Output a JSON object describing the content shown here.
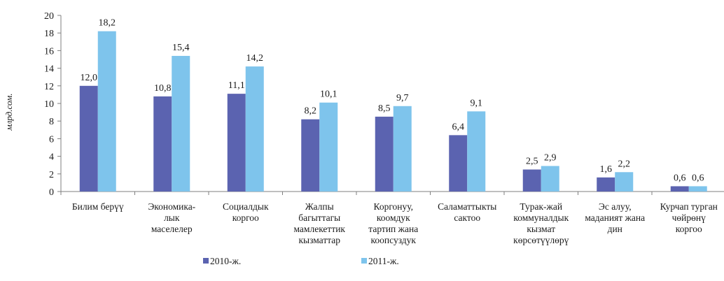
{
  "chart_data": {
    "type": "bar",
    "title_fragment": "",
    "ylabel": "млрд.сом.",
    "ylim": [
      0,
      20
    ],
    "yticks": [
      0,
      2,
      4,
      6,
      8,
      10,
      12,
      14,
      16,
      18,
      20
    ],
    "categories": [
      [
        "Билим берүү"
      ],
      [
        "Экономика-",
        "лык",
        "маселелер"
      ],
      [
        "Социалдык",
        "коргоо"
      ],
      [
        "Жалпы",
        "багыттагы",
        "мамлекеттик",
        "кызматтар"
      ],
      [
        "Коргонуу,",
        "коомдук",
        "тартип жана",
        "коопсуздук"
      ],
      [
        "Саламаттыкты",
        "сактоо"
      ],
      [
        "Турак-жай",
        "коммуналдык",
        "кызмат",
        "көрсөтүүлөрү"
      ],
      [
        "Эс алуу,",
        "маданият жана",
        "дин"
      ],
      [
        "Курчап турган",
        "чөйрөнү",
        "коргоо"
      ]
    ],
    "series": [
      {
        "name": "2010-ж.",
        "color": "#5b63b0",
        "values": [
          12.0,
          10.8,
          11.1,
          8.2,
          8.5,
          6.4,
          2.5,
          1.6,
          0.6
        ],
        "labels": [
          "12,0",
          "10,8",
          "11,1",
          "8,2",
          "8,5",
          "6,4",
          "2,5",
          "1,6",
          "0,6"
        ]
      },
      {
        "name": "2011-ж.",
        "color": "#7ec4ec",
        "values": [
          18.2,
          15.4,
          14.2,
          10.1,
          9.7,
          9.1,
          2.9,
          2.2,
          0.6
        ],
        "labels": [
          "18,2",
          "15,4",
          "14,2",
          "10,1",
          "9,7",
          "9,1",
          "2,9",
          "2,2",
          "0,6"
        ]
      }
    ],
    "legend_position": "bottom",
    "grid": false
  }
}
